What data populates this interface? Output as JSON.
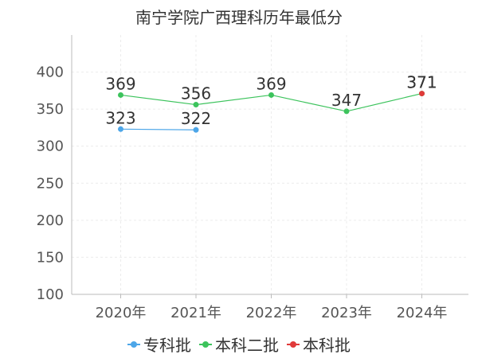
{
  "chart_data": {
    "type": "line",
    "title": "南宁学院广西理科历年最低分",
    "categories": [
      "2020年",
      "2021年",
      "2022年",
      "2023年",
      "2024年"
    ],
    "ylim": [
      100,
      450
    ],
    "yticks": [
      100,
      150,
      200,
      250,
      300,
      350,
      400
    ],
    "grid": true,
    "legend_position": "bottom",
    "series": [
      {
        "name": "专科批",
        "color": "#4da6e8",
        "values": [
          323,
          322,
          null,
          null,
          null
        ]
      },
      {
        "name": "本科二批",
        "color": "#3cc35c",
        "values": [
          369,
          356,
          369,
          347,
          371
        ]
      },
      {
        "name": "本科批",
        "color": "#e03a3a",
        "values": [
          null,
          null,
          null,
          null,
          371
        ]
      }
    ]
  }
}
